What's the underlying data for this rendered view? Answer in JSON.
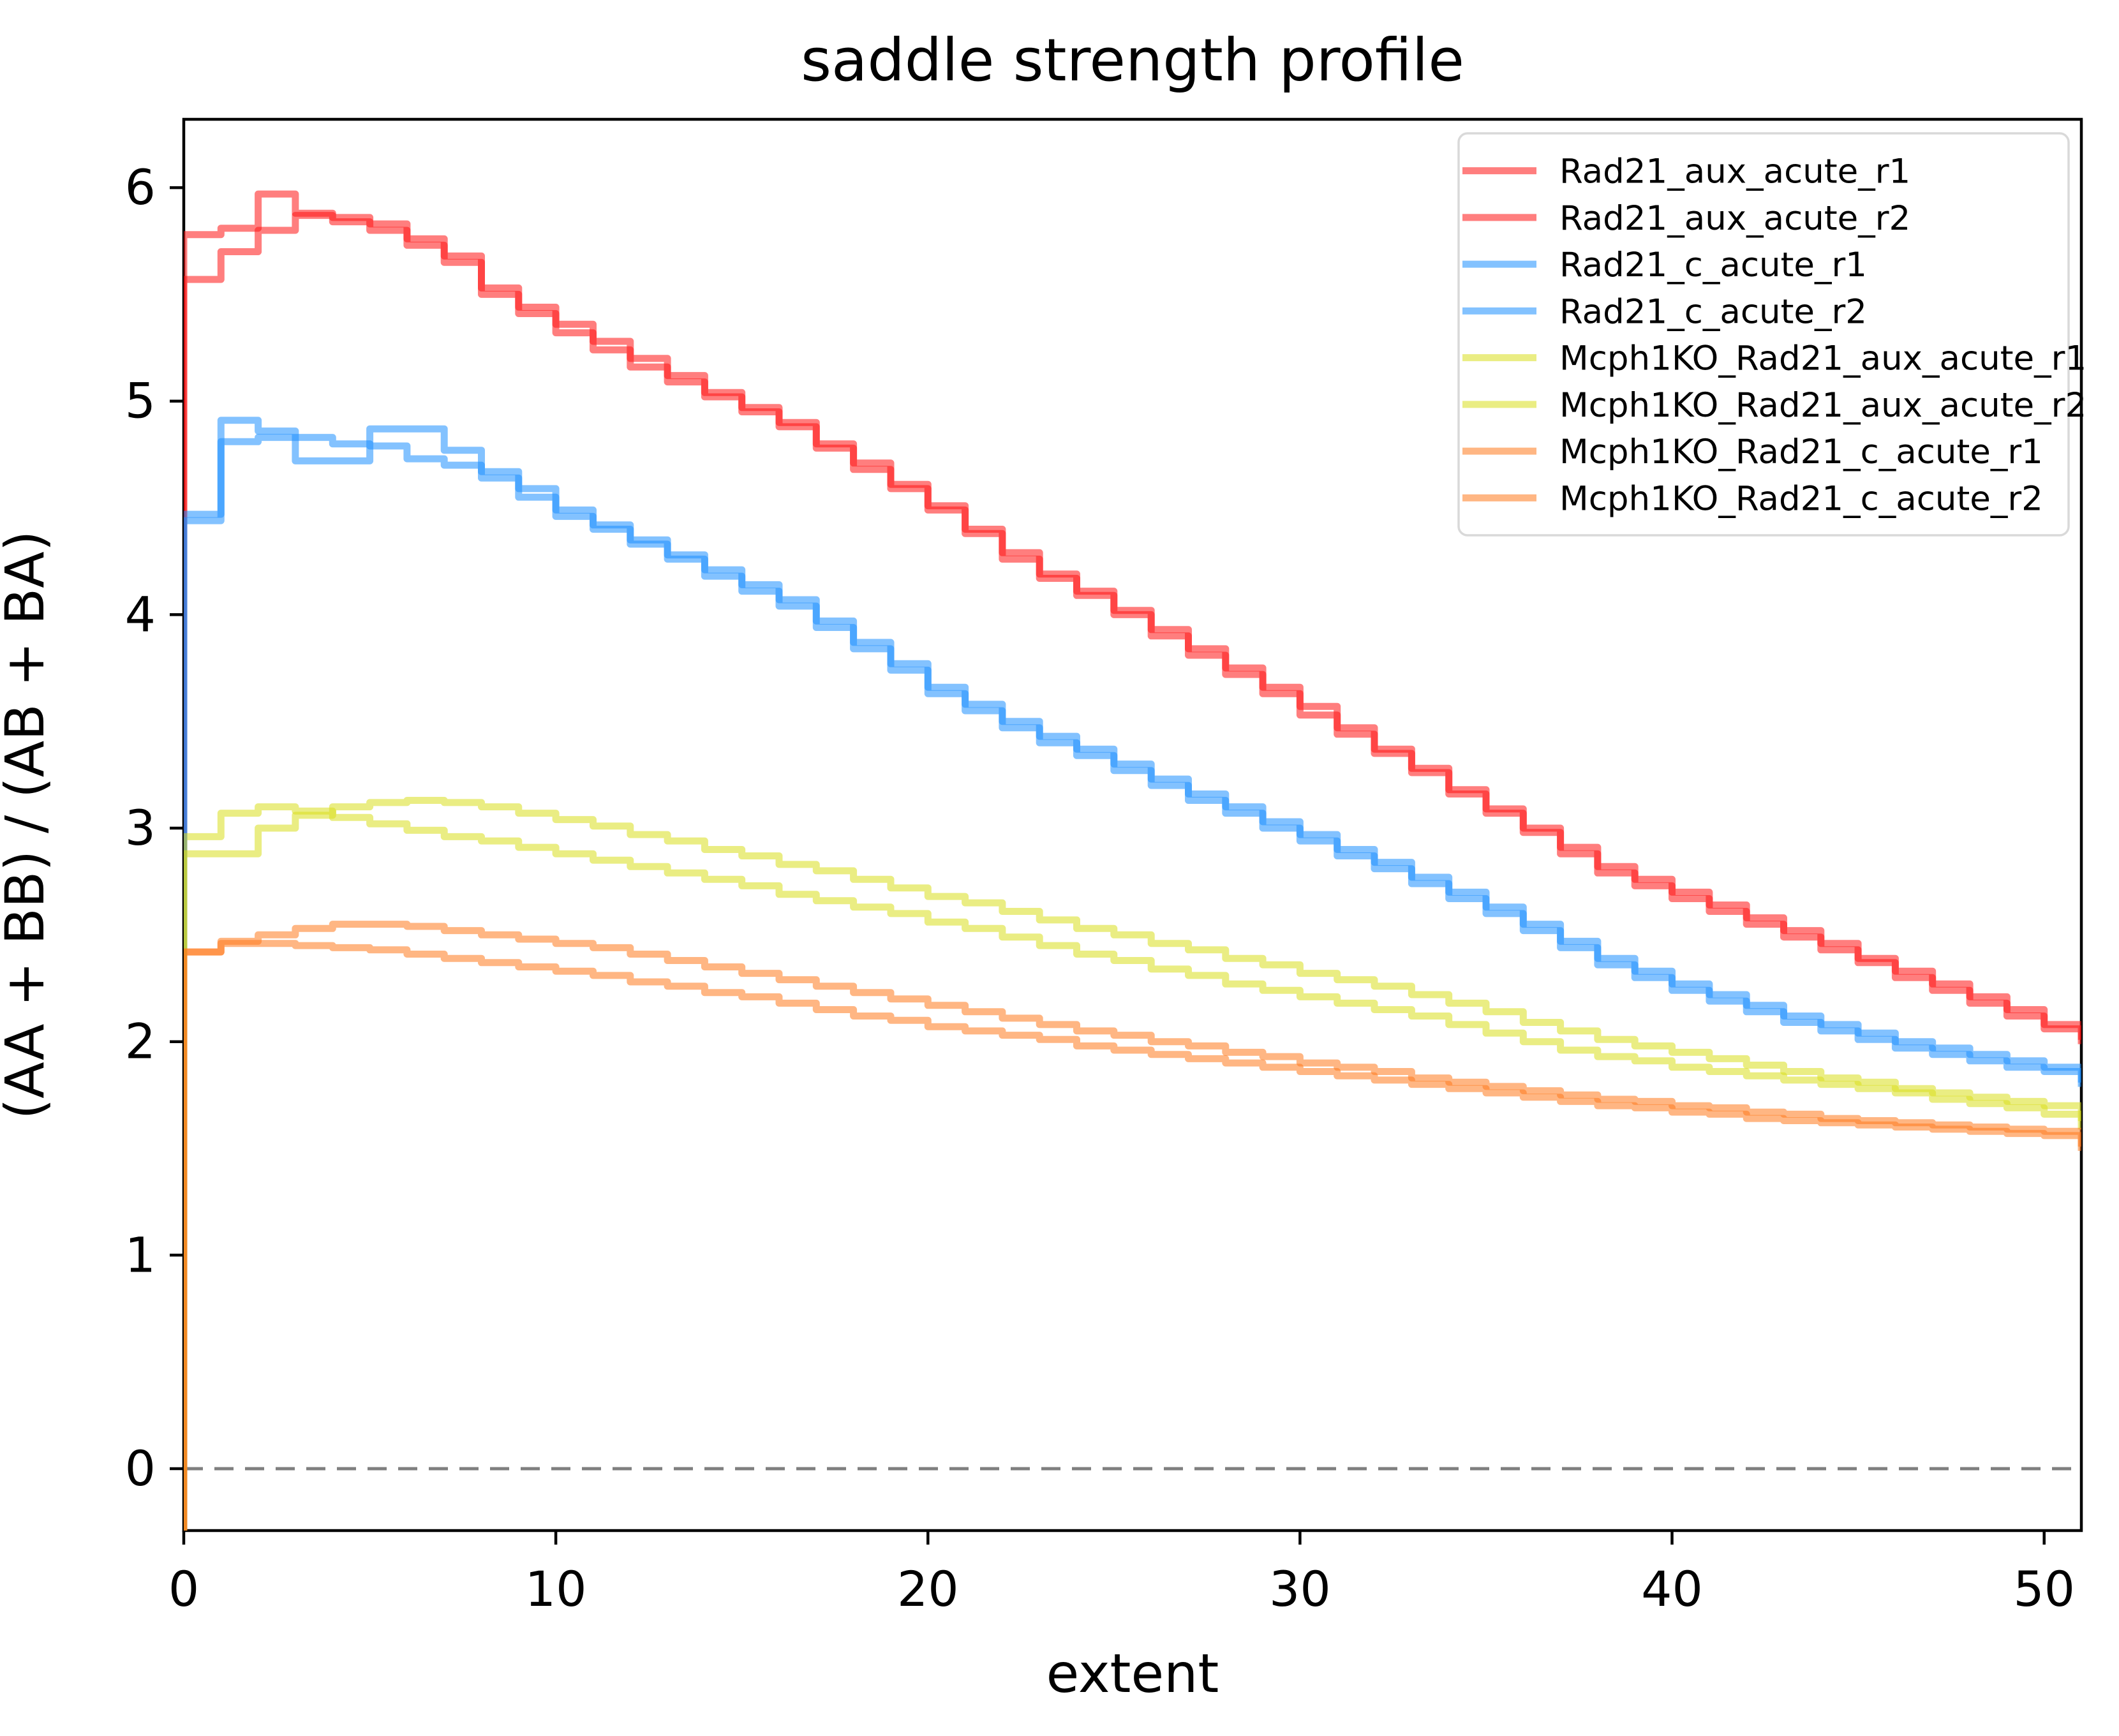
{
  "figure": {
    "background": "#ffffff",
    "axis_color": "#000000",
    "tick_label_color": "#000000"
  },
  "chart_data": {
    "type": "line",
    "subtype": "step-histogram",
    "title": "saddle strength profile",
    "xlabel": "extent",
    "ylabel": "(AA + BB) / (AB + BA)",
    "xlim": [
      0,
      51
    ],
    "ylim": [
      -0.29,
      6.32
    ],
    "xticks": [
      0,
      10,
      20,
      30,
      40,
      50
    ],
    "yticks": [
      0,
      1,
      2,
      3,
      4,
      5,
      6
    ],
    "grid": false,
    "legend_position": "upper right",
    "legend_border_color": "#d9d9d9",
    "bin_width": 1,
    "line_alpha": 0.55,
    "zero_line": {
      "y": 0,
      "style": "dashed",
      "color": "#7f7f7f"
    },
    "series": [
      {
        "name": "Rad21_aux_acute_r1",
        "color": "#ff1414",
        "alpha": 0.55,
        "values": [
          5.78,
          5.81,
          5.97,
          5.88,
          5.84,
          5.8,
          5.73,
          5.65,
          5.5,
          5.41,
          5.32,
          5.24,
          5.16,
          5.09,
          5.02,
          4.95,
          4.88,
          4.78,
          4.68,
          4.59,
          4.49,
          4.38,
          4.26,
          4.17,
          4.09,
          4.0,
          3.9,
          3.81,
          3.72,
          3.63,
          3.53,
          3.44,
          3.35,
          3.26,
          3.16,
          3.07,
          2.98,
          2.88,
          2.79,
          2.73,
          2.67,
          2.61,
          2.55,
          2.49,
          2.43,
          2.37,
          2.3,
          2.24,
          2.18,
          2.12,
          2.06
        ]
      },
      {
        "name": "Rad21_aux_acute_r2",
        "color": "#ff1414",
        "alpha": 0.55,
        "values": [
          5.57,
          5.7,
          5.8,
          5.87,
          5.86,
          5.83,
          5.76,
          5.68,
          5.53,
          5.44,
          5.36,
          5.28,
          5.2,
          5.12,
          5.04,
          4.97,
          4.9,
          4.8,
          4.71,
          4.61,
          4.51,
          4.4,
          4.29,
          4.19,
          4.11,
          4.02,
          3.93,
          3.84,
          3.75,
          3.66,
          3.57,
          3.47,
          3.37,
          3.28,
          3.18,
          3.09,
          3.0,
          2.91,
          2.82,
          2.76,
          2.7,
          2.64,
          2.58,
          2.52,
          2.46,
          2.39,
          2.33,
          2.27,
          2.21,
          2.15,
          2.08
        ]
      },
      {
        "name": "Rad21_c_acute_r1",
        "color": "#1e90ff",
        "alpha": 0.55,
        "values": [
          4.44,
          4.91,
          4.86,
          4.72,
          4.72,
          4.87,
          4.87,
          4.77,
          4.64,
          4.55,
          4.46,
          4.4,
          4.33,
          4.26,
          4.18,
          4.11,
          4.04,
          3.94,
          3.84,
          3.74,
          3.63,
          3.55,
          3.47,
          3.4,
          3.34,
          3.27,
          3.2,
          3.13,
          3.07,
          3.0,
          2.94,
          2.87,
          2.81,
          2.74,
          2.67,
          2.6,
          2.52,
          2.44,
          2.36,
          2.3,
          2.24,
          2.19,
          2.14,
          2.09,
          2.05,
          2.01,
          1.97,
          1.94,
          1.91,
          1.88,
          1.86
        ]
      },
      {
        "name": "Rad21_c_acute_r2",
        "color": "#1e90ff",
        "alpha": 0.55,
        "values": [
          4.47,
          4.81,
          4.83,
          4.83,
          4.8,
          4.79,
          4.73,
          4.7,
          4.67,
          4.59,
          4.49,
          4.42,
          4.35,
          4.28,
          4.21,
          4.14,
          4.07,
          3.97,
          3.87,
          3.77,
          3.66,
          3.58,
          3.5,
          3.43,
          3.37,
          3.3,
          3.23,
          3.16,
          3.1,
          3.03,
          2.97,
          2.9,
          2.84,
          2.77,
          2.7,
          2.63,
          2.55,
          2.47,
          2.39,
          2.33,
          2.27,
          2.22,
          2.17,
          2.12,
          2.08,
          2.04,
          2.0,
          1.97,
          1.94,
          1.91,
          1.88
        ]
      },
      {
        "name": "Mcph1KO_Rad21_aux_acute_r1",
        "color": "#d9de1e",
        "alpha": 0.55,
        "values": [
          2.96,
          3.07,
          3.1,
          3.08,
          3.05,
          3.02,
          2.99,
          2.96,
          2.94,
          2.91,
          2.88,
          2.85,
          2.82,
          2.79,
          2.76,
          2.73,
          2.69,
          2.66,
          2.63,
          2.6,
          2.56,
          2.53,
          2.49,
          2.45,
          2.41,
          2.38,
          2.34,
          2.31,
          2.27,
          2.24,
          2.21,
          2.18,
          2.15,
          2.12,
          2.08,
          2.04,
          2.0,
          1.96,
          1.93,
          1.91,
          1.88,
          1.86,
          1.84,
          1.82,
          1.8,
          1.78,
          1.76,
          1.73,
          1.71,
          1.69,
          1.66
        ]
      },
      {
        "name": "Mcph1KO_Rad21_aux_acute_r2",
        "color": "#d9de1e",
        "alpha": 0.55,
        "values": [
          2.88,
          2.88,
          3.0,
          3.06,
          3.1,
          3.12,
          3.13,
          3.12,
          3.1,
          3.07,
          3.04,
          3.01,
          2.97,
          2.94,
          2.9,
          2.87,
          2.83,
          2.8,
          2.76,
          2.72,
          2.68,
          2.65,
          2.61,
          2.57,
          2.53,
          2.5,
          2.46,
          2.43,
          2.39,
          2.36,
          2.32,
          2.29,
          2.26,
          2.22,
          2.18,
          2.14,
          2.09,
          2.05,
          2.01,
          1.98,
          1.95,
          1.92,
          1.89,
          1.86,
          1.83,
          1.81,
          1.78,
          1.76,
          1.74,
          1.72,
          1.7
        ]
      },
      {
        "name": "Mcph1KO_Rad21_c_acute_r1",
        "color": "#ff7a1e",
        "alpha": 0.55,
        "values": [
          2.42,
          2.47,
          2.5,
          2.53,
          2.55,
          2.55,
          2.54,
          2.52,
          2.5,
          2.48,
          2.46,
          2.44,
          2.41,
          2.38,
          2.35,
          2.32,
          2.29,
          2.26,
          2.23,
          2.2,
          2.17,
          2.14,
          2.11,
          2.08,
          2.05,
          2.03,
          2.0,
          1.98,
          1.95,
          1.93,
          1.9,
          1.88,
          1.86,
          1.83,
          1.81,
          1.79,
          1.77,
          1.75,
          1.73,
          1.72,
          1.7,
          1.69,
          1.67,
          1.66,
          1.64,
          1.63,
          1.62,
          1.61,
          1.6,
          1.59,
          1.58
        ]
      },
      {
        "name": "Mcph1KO_Rad21_c_acute_r2",
        "color": "#ff7a1e",
        "alpha": 0.55,
        "values": [
          2.42,
          2.46,
          2.46,
          2.45,
          2.44,
          2.43,
          2.41,
          2.39,
          2.37,
          2.35,
          2.33,
          2.31,
          2.28,
          2.26,
          2.23,
          2.21,
          2.18,
          2.15,
          2.12,
          2.1,
          2.07,
          2.05,
          2.03,
          2.01,
          1.98,
          1.96,
          1.94,
          1.92,
          1.9,
          1.88,
          1.86,
          1.84,
          1.82,
          1.8,
          1.78,
          1.76,
          1.74,
          1.72,
          1.7,
          1.69,
          1.67,
          1.66,
          1.64,
          1.63,
          1.62,
          1.61,
          1.6,
          1.59,
          1.58,
          1.57,
          1.56
        ]
      }
    ]
  }
}
